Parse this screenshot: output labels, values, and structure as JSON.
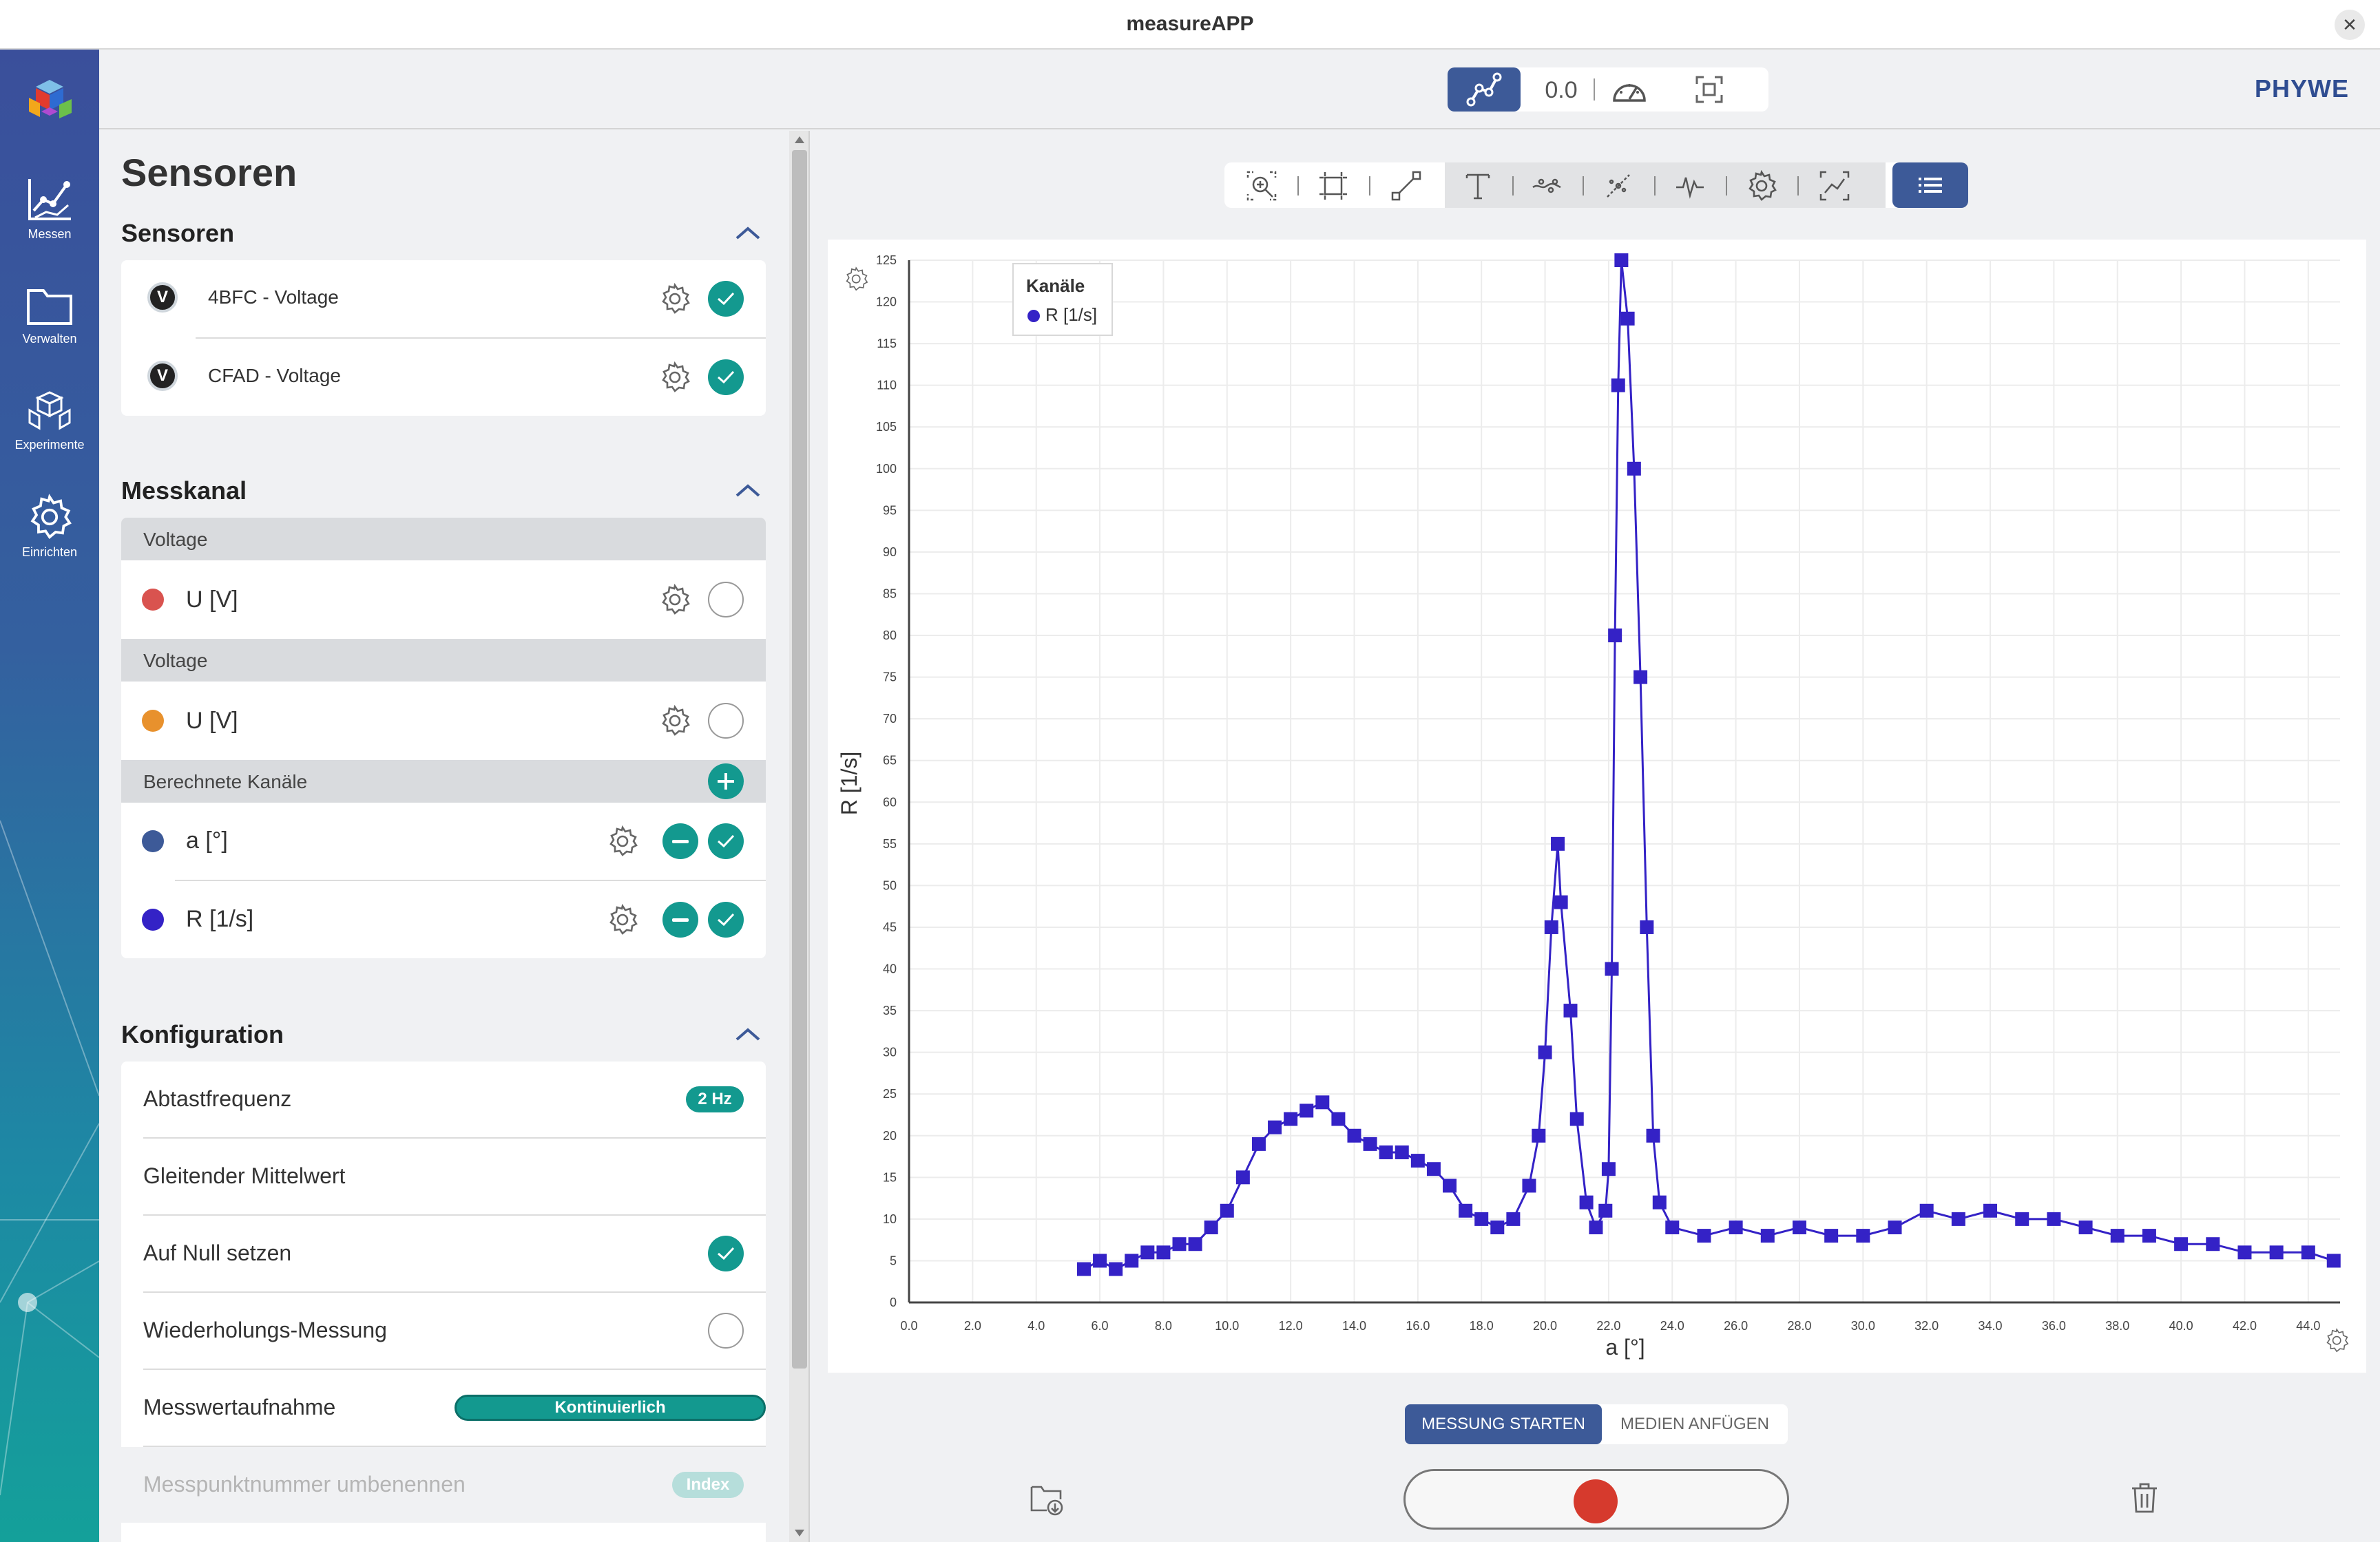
{
  "window": {
    "title": "measureAPP",
    "close": "✕"
  },
  "nav": {
    "items": [
      {
        "label": "Messen",
        "icon": "chart-line-icon"
      },
      {
        "label": "Verwalten",
        "icon": "folder-icon"
      },
      {
        "label": "Experimente",
        "icon": "cubes-icon"
      },
      {
        "label": "Einrichten",
        "icon": "gear-icon"
      }
    ]
  },
  "topbar": {
    "value": "0.0",
    "brand": "PHYWE"
  },
  "panel": {
    "title": "Sensoren",
    "sensors": {
      "title": "Sensoren",
      "items": [
        {
          "badge": "V",
          "label": "4BFC - Voltage",
          "enabled": true
        },
        {
          "badge": "V",
          "label": "CFAD - Voltage",
          "enabled": true
        }
      ]
    },
    "channels": {
      "title": "Messkanal",
      "groups": [
        {
          "header": "Voltage",
          "name": "U [V]",
          "color": "#d9534f",
          "enabled": false
        },
        {
          "header": "Voltage",
          "name": "U [V]",
          "color": "#e8912d",
          "enabled": false
        }
      ],
      "computed_header": "Berechnete Kanäle",
      "computed": [
        {
          "name": "a [°]",
          "color": "#3d5a98",
          "enabled": true
        },
        {
          "name": "R [1/s]",
          "color": "#3422c6",
          "enabled": true
        }
      ]
    },
    "config": {
      "title": "Konfiguration",
      "rows": [
        {
          "label": "Abtastfrequenz",
          "badge": "2 Hz"
        },
        {
          "label": "Gleitender Mittelwert"
        },
        {
          "label": "Auf Null setzen",
          "checked": true
        },
        {
          "label": "Wiederholungs-Messung",
          "checked": false
        },
        {
          "label": "Messwertaufnahme",
          "badge": "Kontinuierlich"
        },
        {
          "label": "Messpunktnummer umbenennen",
          "badge": "Index",
          "disabled": true
        }
      ]
    }
  },
  "controls": {
    "start": "MESSUNG STARTEN",
    "media": "MEDIEN ANFÜGEN"
  },
  "chart_data": {
    "type": "scatter",
    "legend_title": "Kanäle",
    "series": [
      {
        "name": "R [1/s]",
        "color": "#3422c6"
      }
    ],
    "xlabel": "a [°]",
    "ylabel": "R [1/s]",
    "xlim": [
      0,
      45
    ],
    "ylim": [
      0,
      125
    ],
    "x_ticks": [
      "0.0",
      "2.0",
      "4.0",
      "6.0",
      "8.0",
      "10.0",
      "12.0",
      "14.0",
      "16.0",
      "18.0",
      "20.0",
      "22.0",
      "24.0",
      "26.0",
      "28.0",
      "30.0",
      "32.0",
      "34.0",
      "36.0",
      "38.0",
      "40.0",
      "42.0",
      "44.0"
    ],
    "y_ticks": [
      "0",
      "5",
      "10",
      "15",
      "20",
      "25",
      "30",
      "35",
      "40",
      "45",
      "50",
      "55",
      "60",
      "65",
      "70",
      "75",
      "80",
      "85",
      "90",
      "95",
      "100",
      "105",
      "110",
      "115",
      "120",
      "125"
    ],
    "grid": true,
    "points": [
      [
        5.5,
        4
      ],
      [
        6.0,
        5
      ],
      [
        6.5,
        4
      ],
      [
        7.0,
        5
      ],
      [
        7.5,
        6
      ],
      [
        8.0,
        6
      ],
      [
        8.5,
        7
      ],
      [
        9.0,
        7
      ],
      [
        9.5,
        9
      ],
      [
        10.0,
        11
      ],
      [
        10.5,
        15
      ],
      [
        11.0,
        19
      ],
      [
        11.5,
        21
      ],
      [
        12.0,
        22
      ],
      [
        12.5,
        23
      ],
      [
        13.0,
        24
      ],
      [
        13.5,
        22
      ],
      [
        14.0,
        20
      ],
      [
        14.5,
        19
      ],
      [
        15.0,
        18
      ],
      [
        15.5,
        18
      ],
      [
        16.0,
        17
      ],
      [
        16.5,
        16
      ],
      [
        17.0,
        14
      ],
      [
        17.5,
        11
      ],
      [
        18.0,
        10
      ],
      [
        18.5,
        9
      ],
      [
        19.0,
        10
      ],
      [
        19.5,
        14
      ],
      [
        19.8,
        20
      ],
      [
        20.0,
        30
      ],
      [
        20.2,
        45
      ],
      [
        20.4,
        55
      ],
      [
        20.5,
        48
      ],
      [
        20.8,
        35
      ],
      [
        21.0,
        22
      ],
      [
        21.3,
        12
      ],
      [
        21.6,
        9
      ],
      [
        21.9,
        11
      ],
      [
        22.0,
        16
      ],
      [
        22.1,
        40
      ],
      [
        22.2,
        80
      ],
      [
        22.3,
        110
      ],
      [
        22.4,
        125
      ],
      [
        22.6,
        118
      ],
      [
        22.8,
        100
      ],
      [
        23.0,
        75
      ],
      [
        23.2,
        45
      ],
      [
        23.4,
        20
      ],
      [
        23.6,
        12
      ],
      [
        24.0,
        9
      ],
      [
        25.0,
        8
      ],
      [
        26.0,
        9
      ],
      [
        27.0,
        8
      ],
      [
        28.0,
        9
      ],
      [
        29.0,
        8
      ],
      [
        30.0,
        8
      ],
      [
        31.0,
        9
      ],
      [
        32.0,
        11
      ],
      [
        33.0,
        10
      ],
      [
        34.0,
        11
      ],
      [
        35.0,
        10
      ],
      [
        36.0,
        10
      ],
      [
        37.0,
        9
      ],
      [
        38.0,
        8
      ],
      [
        39.0,
        8
      ],
      [
        40.0,
        7
      ],
      [
        41.0,
        7
      ],
      [
        42.0,
        6
      ],
      [
        43.0,
        6
      ],
      [
        44.0,
        6
      ],
      [
        44.8,
        5
      ]
    ]
  }
}
